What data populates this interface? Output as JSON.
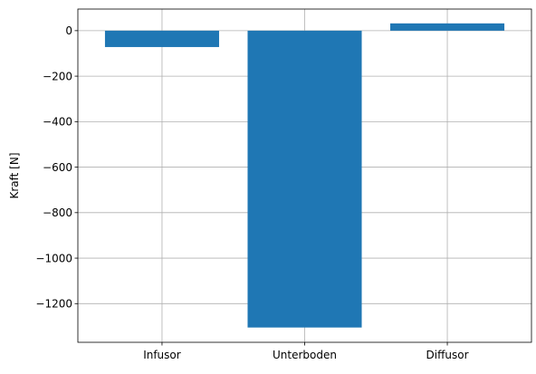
{
  "chart_data": {
    "type": "bar",
    "categories": [
      "Infusor",
      "Unterboden",
      "Diffusor"
    ],
    "values": [
      -72,
      -1305,
      32
    ],
    "title": "",
    "xlabel": "",
    "ylabel": "Kraft [N]",
    "ylim": [
      -1370,
      95
    ],
    "yticks": [
      0,
      -200,
      -400,
      -600,
      -800,
      -1000,
      -1200
    ],
    "ytick_labels": [
      "0",
      "−200",
      "−400",
      "−600",
      "−800",
      "−1000",
      "−1200"
    ],
    "grid": true,
    "legend": "none",
    "bar_color": "#1f77b4",
    "grid_color": "#b0b0b0"
  }
}
